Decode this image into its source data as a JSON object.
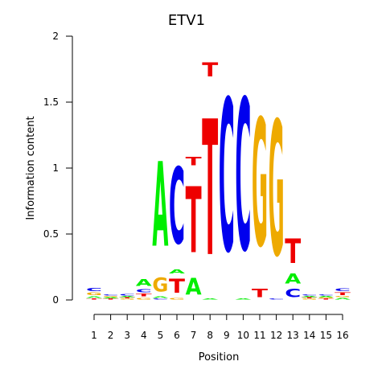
{
  "chart_data": {
    "type": "sequence-logo",
    "title": "ETV1",
    "xlabel": "Position",
    "ylabel": "Information content",
    "ylim": [
      0,
      2
    ],
    "y_ticks": [
      "0",
      "0.5",
      "1",
      "1.5",
      "2"
    ],
    "y_tick_values": [
      0,
      0.5,
      1,
      1.5,
      2
    ],
    "positions": [
      "1",
      "2",
      "3",
      "4",
      "5",
      "6",
      "7",
      "8",
      "9",
      "10",
      "11",
      "12",
      "13",
      "14",
      "15",
      "16"
    ],
    "colors": {
      "A": "#00ee00",
      "C": "#0000ee",
      "G": "#eeaa00",
      "T": "#ee0000"
    },
    "columns": [
      [
        {
          "b": "T",
          "h": 0.01
        },
        {
          "b": "A",
          "h": 0.02
        },
        {
          "b": "G",
          "h": 0.03
        },
        {
          "b": "C",
          "h": 0.04
        }
      ],
      [
        {
          "b": "T",
          "h": 0.01
        },
        {
          "b": "A",
          "h": 0.01
        },
        {
          "b": "G",
          "h": 0.01
        },
        {
          "b": "C",
          "h": 0.01
        }
      ],
      [
        {
          "b": "G",
          "h": 0.01
        },
        {
          "b": "T",
          "h": 0.01
        },
        {
          "b": "A",
          "h": 0.01
        },
        {
          "b": "C",
          "h": 0.02
        }
      ],
      [
        {
          "b": "G",
          "h": 0.02
        },
        {
          "b": "T",
          "h": 0.03
        },
        {
          "b": "C",
          "h": 0.04
        },
        {
          "b": "A",
          "h": 0.08
        }
      ],
      [
        {
          "b": "C",
          "h": 0.01
        },
        {
          "b": "A",
          "h": 0.02
        },
        {
          "b": "G",
          "h": 0.17
        },
        {
          "b": "A",
          "h": 1.03
        }
      ],
      [
        {
          "b": "G",
          "h": 0.02
        },
        {
          "b": "T",
          "h": 0.17
        },
        {
          "b": "A",
          "h": 0.05
        },
        {
          "b": "C",
          "h": 0.93
        }
      ],
      [
        {
          "b": "A",
          "h": 0.2
        },
        {
          "b": "T",
          "h": 0.8
        },
        {
          "b": "T",
          "h": 0.1
        }
      ],
      [
        {
          "b": "A",
          "h": 0.01
        },
        {
          "b": "T",
          "h": 1.65
        },
        {
          "b": "T",
          "h": 0.17
        }
      ],
      [
        {
          "b": "C",
          "h": 1.85
        }
      ],
      [
        {
          "b": "A",
          "h": 0.01
        },
        {
          "b": "C",
          "h": 1.84
        }
      ],
      [
        {
          "b": "T",
          "h": 0.1
        },
        {
          "b": "G",
          "h": 1.55
        }
      ],
      [
        {
          "b": "C",
          "h": 0.01
        },
        {
          "b": "G",
          "h": 1.64
        }
      ],
      [
        {
          "b": "C",
          "h": 0.1
        },
        {
          "b": "A",
          "h": 0.12
        },
        {
          "b": "T",
          "h": 0.3
        }
      ],
      [
        {
          "b": "G",
          "h": 0.01
        },
        {
          "b": "T",
          "h": 0.01
        },
        {
          "b": "A",
          "h": 0.01
        },
        {
          "b": "C",
          "h": 0.01
        }
      ],
      [
        {
          "b": "T",
          "h": 0.01
        },
        {
          "b": "G",
          "h": 0.01
        },
        {
          "b": "A",
          "h": 0.01
        },
        {
          "b": "C",
          "h": 0.01
        }
      ],
      [
        {
          "b": "A",
          "h": 0.02
        },
        {
          "b": "G",
          "h": 0.01
        },
        {
          "b": "T",
          "h": 0.03
        },
        {
          "b": "C",
          "h": 0.03
        }
      ]
    ]
  }
}
